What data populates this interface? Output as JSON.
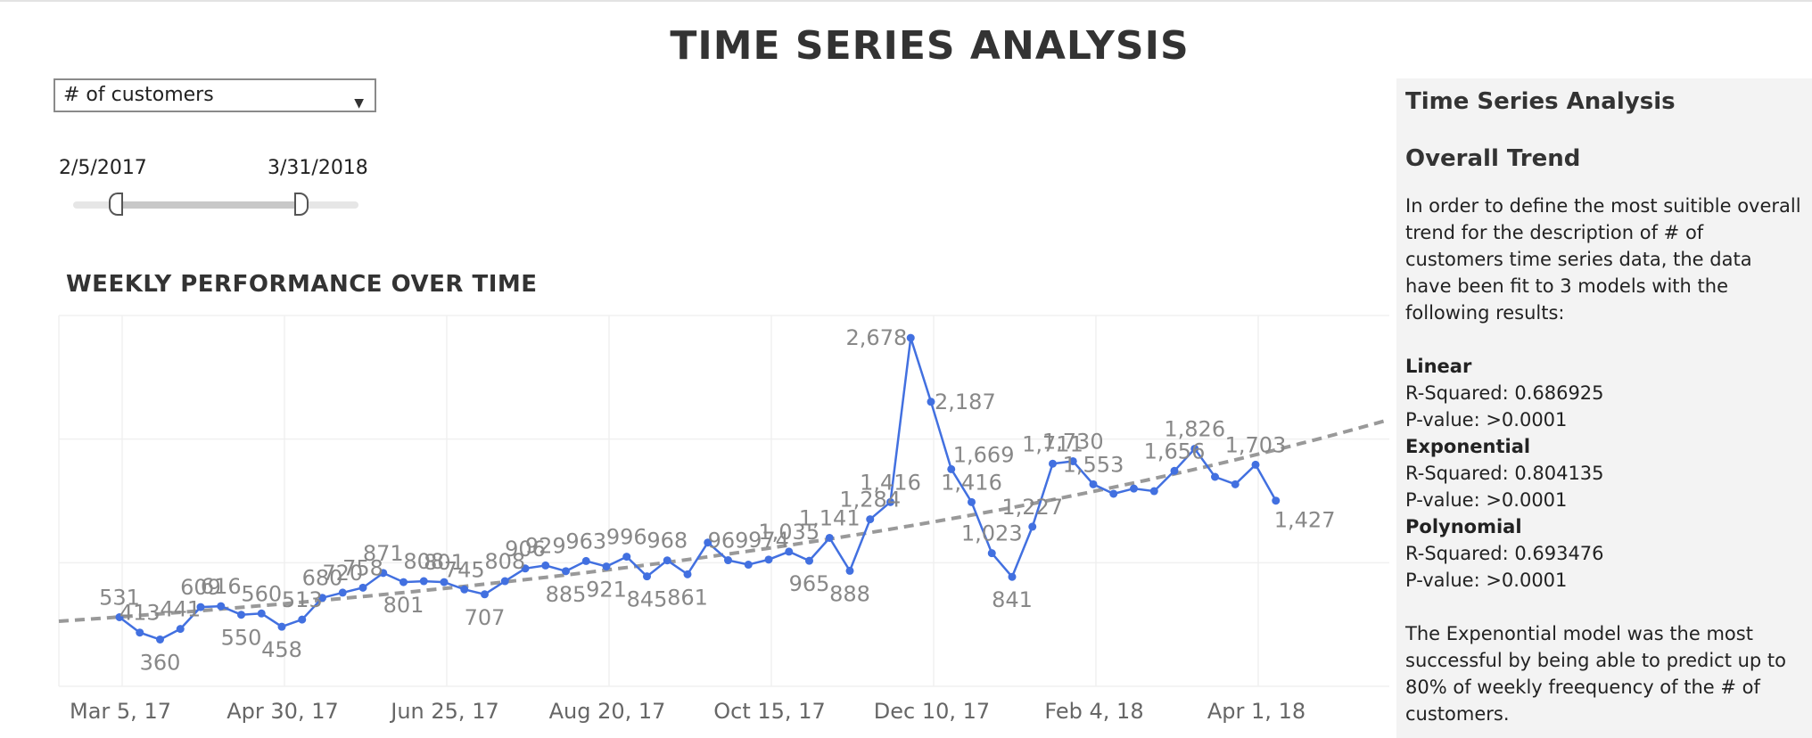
{
  "page": {
    "title": "TIME SERIES ANALYSIS"
  },
  "filter": {
    "selected": "# of customers"
  },
  "date_range": {
    "start": "2/5/2017",
    "end": "3/31/2018",
    "start_pos": 0.15,
    "end_pos": 0.8
  },
  "chart_data": {
    "type": "line",
    "title": "WEEKLY PERFORMANCE OVER TIME",
    "x_start": "2017-02-05",
    "x_tick_labels": [
      "Mar 5, 17",
      "Apr 30, 17",
      "Jun 25, 17",
      "Aug 20, 17",
      "Oct 15, 17",
      "Dec 10, 17",
      "Feb 4, 18",
      "Apr 1, 18"
    ],
    "ylim": [
      0,
      2850
    ],
    "grid": true,
    "series": [
      {
        "values": [
          531,
          413,
          360,
          441,
          609,
          616,
          550,
          560,
          458,
          513,
          680,
          720,
          758,
          871,
          801,
          808,
          801,
          745,
          707,
          808,
          906,
          929,
          885,
          963,
          921,
          996,
          845,
          968,
          861,
          1105,
          969,
          935,
          974,
          1035,
          965,
          1141,
          888,
          1284,
          1416,
          2678,
          2187,
          1669,
          1416,
          1023,
          841,
          1227,
          1711,
          1730,
          1553,
          1480,
          1520,
          1500,
          1656,
          1826,
          1610,
          1553,
          1703,
          1427
        ],
        "point_labels": [
          "531",
          "413",
          "360",
          "441",
          "609",
          "616",
          "550",
          "560",
          "458",
          "513",
          "680",
          "720",
          "758",
          "871",
          "801",
          "808",
          "801",
          "745",
          "707",
          "808",
          "906",
          "929",
          "885",
          "963",
          "921",
          "996",
          "845",
          "968",
          "861",
          "",
          "969",
          "",
          "974",
          "1,035",
          "965",
          "1,141",
          "888",
          "1,284",
          "1,416",
          "2,678",
          "2,187",
          "1,669",
          "1,416",
          "1,023",
          "841",
          "1,227",
          "1,711",
          "1,730",
          "1,553",
          "",
          "",
          "",
          "1,656",
          "1,826",
          "",
          "",
          "1,703",
          "1,427"
        ]
      }
    ],
    "trend": {
      "type": "exponential",
      "start": 500,
      "end": 2050
    },
    "colors": {
      "line": "#4270e0",
      "trend": "#999999",
      "label": "#888888",
      "grid": "#f0f0f0"
    }
  },
  "sidebar": {
    "title": "Time Series Analysis",
    "subtitle": "Overall Trend",
    "description": "In order to define the most suitible overall trend for the description of # of customers time series data, the data have been fit to 3 models with the following results:",
    "models": [
      {
        "name": "Linear",
        "r_squared": "R-Squared: 0.686925",
        "p_value": "P-value: >0.0001"
      },
      {
        "name": "Exponential",
        "r_squared": "R-Squared: 0.804135",
        "p_value": "P-value: >0.0001"
      },
      {
        "name": "Polynomial",
        "r_squared": "R-Squared: 0.693476",
        "p_value": "P-value: >0.0001"
      }
    ],
    "conclusion": "The Expenontial model was the most successful by being able to predict up to 80% of weekly freequency of the # of customers."
  }
}
